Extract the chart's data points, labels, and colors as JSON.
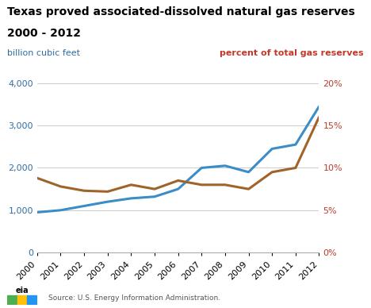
{
  "title_line1": "Texas proved associated-dissolved natural gas reserves",
  "title_line2": "2000 - 2012",
  "ylabel_left": "billion cubic feet",
  "ylabel_right": "percent of total gas reserves",
  "source": "Source: U.S. Energy Information Administration.",
  "years": [
    2000,
    2001,
    2002,
    2003,
    2004,
    2005,
    2006,
    2007,
    2008,
    2009,
    2010,
    2011,
    2012
  ],
  "bcf": [
    950,
    1000,
    1100,
    1200,
    1280,
    1320,
    1500,
    2000,
    2050,
    1900,
    2450,
    2550,
    3450
  ],
  "pct": [
    8.8,
    7.8,
    7.3,
    7.2,
    8.0,
    7.5,
    8.5,
    8.0,
    8.0,
    7.5,
    9.5,
    10.0,
    16.0
  ],
  "line_color_blue": "#3b8dc8",
  "line_color_brown": "#a0632a",
  "ylim_left": [
    0,
    4000
  ],
  "ylim_right": [
    0,
    20
  ],
  "yticks_left": [
    0,
    1000,
    2000,
    3000,
    4000
  ],
  "ytick_labels_left": [
    "0",
    "1,000",
    "2,000",
    "3,000",
    "4,000"
  ],
  "yticks_right": [
    0,
    5,
    10,
    15,
    20
  ],
  "ytick_labels_right": [
    "0%",
    "5%",
    "10%",
    "15%",
    "20%"
  ],
  "title_fontsize": 10,
  "axis_label_fontsize": 8,
  "tick_fontsize": 8,
  "line_width": 2.2,
  "background_color": "#ffffff",
  "grid_color": "#cccccc",
  "left_label_color": "#2e6da4",
  "right_label_color": "#c0392b",
  "title_color": "#000000",
  "source_color": "#555555",
  "source_fontsize": 6.5
}
